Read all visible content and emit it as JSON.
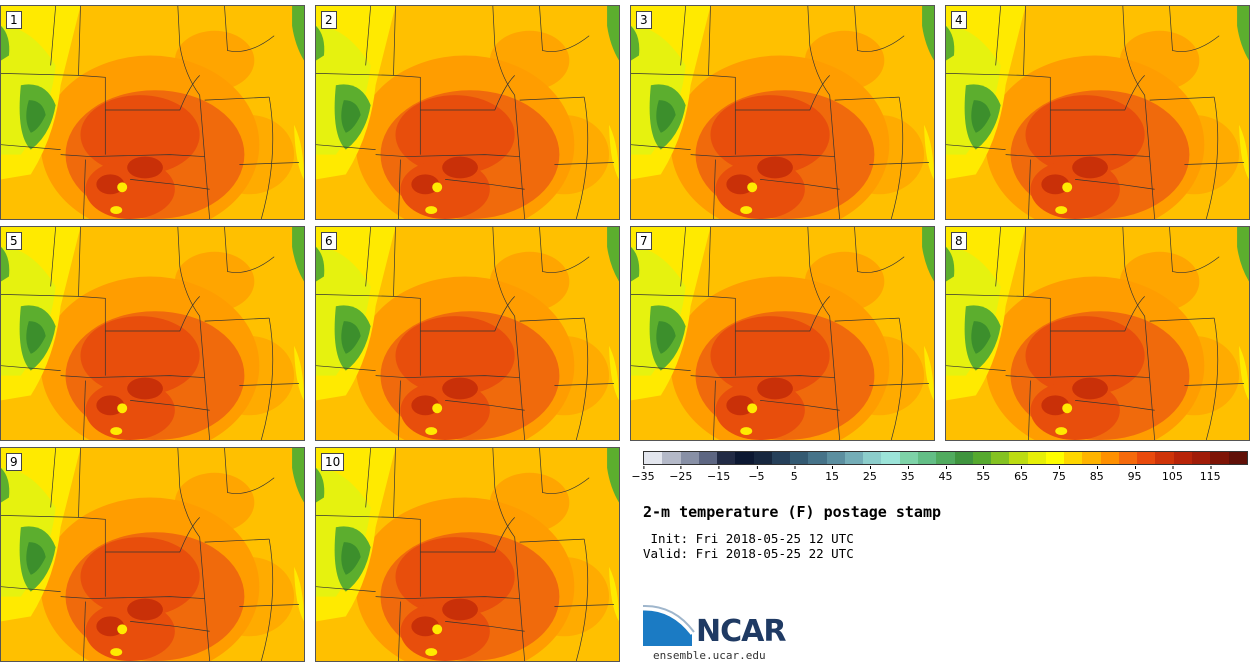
{
  "stamps": [
    {
      "label": "1"
    },
    {
      "label": "2"
    },
    {
      "label": "3"
    },
    {
      "label": "4"
    },
    {
      "label": "5"
    },
    {
      "label": "6"
    },
    {
      "label": "7"
    },
    {
      "label": "8"
    },
    {
      "label": "9"
    },
    {
      "label": "10"
    }
  ],
  "title": "2-m temperature (F) postage stamp",
  "init": " Init: Fri 2018-05-25 12 UTC",
  "valid": "Valid: Fri 2018-05-25 22 UTC",
  "colorbar": {
    "colors": [
      "#e3e6ee",
      "#b4b9c8",
      "#8890a6",
      "#5d6682",
      "#222b45",
      "#0c1832",
      "#17273f",
      "#26405a",
      "#345a72",
      "#467389",
      "#5c8fa0",
      "#74adb7",
      "#8ccdcb",
      "#9ce4d9",
      "#7ed3a8",
      "#63be86",
      "#51ab5f",
      "#3f943e",
      "#56a92f",
      "#84c222",
      "#bcdc12",
      "#e6ef08",
      "#ffff00",
      "#ffd700",
      "#ffb400",
      "#ff9000",
      "#f56a0c",
      "#e94a0c",
      "#cf3408",
      "#b82408",
      "#a01c08",
      "#7e1406",
      "#601008"
    ],
    "ticks": [
      "−35",
      "−25",
      "−15",
      "−5",
      "5",
      "15",
      "25",
      "35",
      "45",
      "55",
      "65",
      "75",
      "85",
      "95",
      "105",
      "115"
    ]
  },
  "logo": {
    "text": "NCAR",
    "site": "ensemble.ucar.edu"
  },
  "map_colors": {
    "base": "#ffc000",
    "warm": "#ff9d00",
    "hot": "#f06a0c",
    "hotter": "#e84e0c",
    "hottest": "#c93008",
    "cool": "#ffea00",
    "cooler": "#e6f20f",
    "green": "#5cae2e",
    "darkgreen": "#3c8f2c"
  }
}
